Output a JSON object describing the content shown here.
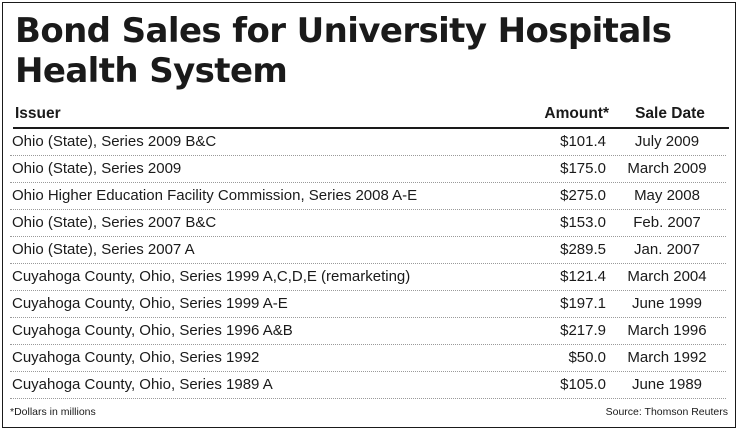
{
  "title": "Bond Sales for University Hospitals Health System",
  "columns": {
    "issuer": "Issuer",
    "amount": "Amount*",
    "sale_date": "Sale Date"
  },
  "rows": [
    {
      "issuer": "Ohio (State), Series 2009 B&C",
      "amount": "$101.4",
      "sale_date": "July 2009"
    },
    {
      "issuer": "Ohio (State), Series 2009",
      "amount": "$175.0",
      "sale_date": "March 2009"
    },
    {
      "issuer": "Ohio Higher Education Facility Commission, Series 2008 A-E",
      "amount": "$275.0",
      "sale_date": "May 2008"
    },
    {
      "issuer": "Ohio (State), Series 2007 B&C",
      "amount": "$153.0",
      "sale_date": "Feb. 2007"
    },
    {
      "issuer": "Ohio (State), Series 2007 A",
      "amount": "$289.5",
      "sale_date": "Jan. 2007"
    },
    {
      "issuer": "Cuyahoga County, Ohio, Series 1999 A,C,D,E (remarketing)",
      "amount": "$121.4",
      "sale_date": "March 2004"
    },
    {
      "issuer": "Cuyahoga County, Ohio, Series 1999 A-E",
      "amount": "$197.1",
      "sale_date": "June 1999"
    },
    {
      "issuer": "Cuyahoga County, Ohio, Series 1996 A&B",
      "amount": "$217.9",
      "sale_date": "March 1996"
    },
    {
      "issuer": "Cuyahoga County, Ohio, Series 1992",
      "amount": "$50.0",
      "sale_date": "March 1992"
    },
    {
      "issuer": "Cuyahoga County, Ohio, Series 1989 A",
      "amount": "$105.0",
      "sale_date": "June 1989"
    }
  ],
  "footnote": "*Dollars in millions",
  "source": "Source: Thomson Reuters"
}
